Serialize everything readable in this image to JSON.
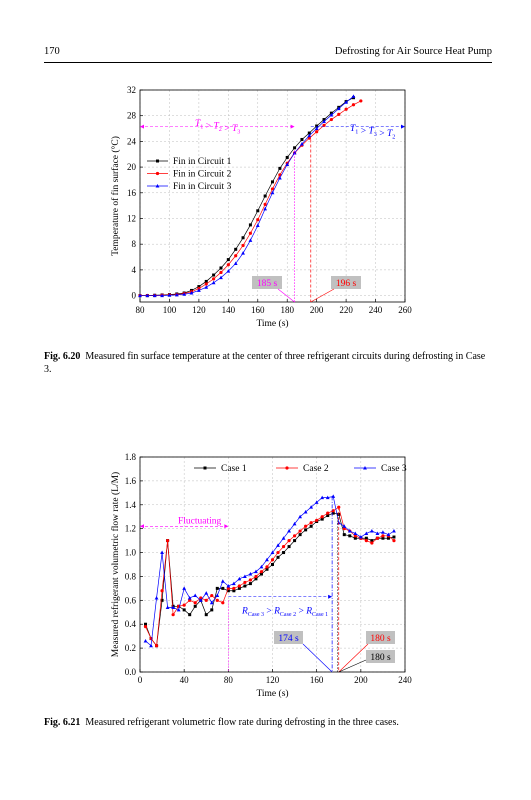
{
  "header": {
    "page_number": "170",
    "running_title": "Defrosting for Air Source Heat Pump"
  },
  "figures": [
    {
      "caption_label": "Fig. 6.20",
      "caption_text": "Measured fin surface temperature at the center of three refrigerant circuits during defrosting in Case 3.",
      "annotations": {
        "left_relation": "T1 > T2 > T3",
        "right_relation": "T1 > T3 > T2",
        "box_185": "185 s",
        "box_196": "196 s"
      }
    },
    {
      "caption_label": "Fig. 6.21",
      "caption_text": "Measured refrigerant volumetric flow rate during defrosting in the three cases.",
      "annotations": {
        "fluctuating": "Fluctuating",
        "relation": "RCase 3 > RCase 2 > RCase 1",
        "box_174": "174 s",
        "box_180_red": "180 s",
        "box_180": "180 s"
      }
    }
  ],
  "chart_data": [
    {
      "type": "line",
      "title": "",
      "xlabel": "Time (s)",
      "ylabel": "Temperature of fin surface (°C)",
      "xlim": [
        80,
        260
      ],
      "ylim": [
        -1,
        32
      ],
      "xticks": [
        80,
        100,
        120,
        140,
        160,
        180,
        200,
        220,
        240,
        260
      ],
      "yticks": [
        0,
        4,
        8,
        12,
        16,
        20,
        24,
        28,
        32
      ],
      "grid": true,
      "legend": "left",
      "series": [
        {
          "name": "Fin in Circuit 1",
          "color": "#000000",
          "marker": "square",
          "x": [
            80,
            85,
            90,
            95,
            100,
            105,
            110,
            115,
            120,
            125,
            130,
            135,
            140,
            145,
            150,
            155,
            160,
            165,
            170,
            175,
            180,
            185,
            190,
            195,
            200,
            205,
            210,
            215,
            220,
            225
          ],
          "y": [
            0,
            0,
            0.05,
            0.1,
            0.15,
            0.25,
            0.4,
            0.8,
            1.4,
            2.2,
            3.2,
            4.3,
            5.6,
            7.2,
            9,
            11,
            13.2,
            15.5,
            17.7,
            19.8,
            21.5,
            23,
            24.3,
            25.3,
            26.4,
            27.4,
            28.4,
            29.3,
            30.2,
            30.8
          ]
        },
        {
          "name": "Fin in Circuit 2",
          "color": "#ff0000",
          "marker": "circle",
          "x": [
            80,
            85,
            90,
            95,
            100,
            105,
            110,
            115,
            120,
            125,
            130,
            135,
            140,
            145,
            150,
            155,
            160,
            165,
            170,
            175,
            180,
            185,
            190,
            195,
            200,
            205,
            210,
            215,
            220,
            225,
            230
          ],
          "y": [
            0,
            0,
            0,
            0.05,
            0.1,
            0.15,
            0.3,
            0.6,
            1.1,
            1.8,
            2.6,
            3.6,
            4.8,
            6.2,
            7.8,
            9.7,
            11.8,
            14.2,
            16.6,
            18.8,
            20.6,
            22.2,
            23.4,
            24.5,
            25.5,
            26.5,
            27.4,
            28.2,
            29,
            29.7,
            30.3
          ]
        },
        {
          "name": "Fin in Circuit 3",
          "color": "#0000ff",
          "marker": "triangle",
          "x": [
            80,
            85,
            90,
            95,
            100,
            105,
            110,
            115,
            120,
            125,
            130,
            135,
            140,
            145,
            150,
            155,
            160,
            165,
            170,
            175,
            180,
            185,
            190,
            195,
            200,
            205,
            210,
            215,
            220,
            225
          ],
          "y": [
            0,
            0,
            0,
            0,
            0.05,
            0.1,
            0.2,
            0.4,
            0.8,
            1.3,
            2,
            2.8,
            3.8,
            5,
            6.6,
            8.6,
            10.9,
            13.5,
            16,
            18.3,
            20.4,
            22.2,
            23.6,
            24.9,
            26,
            27.1,
            28.1,
            29.1,
            30.1,
            31
          ]
        }
      ],
      "markers_vertical": [
        185,
        196
      ]
    },
    {
      "type": "line",
      "title": "",
      "xlabel": "Time (s)",
      "ylabel": "Measured refrigerant volumetric flow rate (L/M)",
      "xlim": [
        0,
        240
      ],
      "ylim": [
        0,
        1.8
      ],
      "xticks": [
        0,
        40,
        80,
        120,
        160,
        200,
        240
      ],
      "yticks": [
        0.0,
        0.2,
        0.4,
        0.6,
        0.8,
        1.0,
        1.2,
        1.4,
        1.6,
        1.8
      ],
      "grid": true,
      "legend": "top",
      "series": [
        {
          "name": "Case 1",
          "color": "#000000",
          "marker": "square",
          "x": [
            5,
            10,
            15,
            20,
            25,
            30,
            35,
            40,
            45,
            50,
            55,
            60,
            65,
            70,
            75,
            80,
            85,
            90,
            95,
            100,
            105,
            110,
            115,
            120,
            125,
            130,
            135,
            140,
            145,
            150,
            155,
            160,
            165,
            170,
            175,
            180,
            185,
            190,
            195,
            200,
            205,
            210,
            215,
            220,
            225,
            230
          ],
          "y": [
            0.4,
            0.28,
            0.22,
            0.6,
            1.1,
            0.55,
            0.55,
            0.52,
            0.48,
            0.55,
            0.6,
            0.48,
            0.52,
            0.7,
            0.7,
            0.68,
            0.68,
            0.7,
            0.72,
            0.74,
            0.78,
            0.82,
            0.86,
            0.9,
            0.96,
            1.0,
            1.05,
            1.1,
            1.15,
            1.19,
            1.22,
            1.26,
            1.28,
            1.31,
            1.33,
            1.32,
            1.15,
            1.14,
            1.12,
            1.12,
            1.12,
            1.1,
            1.12,
            1.12,
            1.12,
            1.13
          ]
        },
        {
          "name": "Case 2",
          "color": "#ff0000",
          "marker": "circle",
          "x": [
            5,
            10,
            15,
            20,
            25,
            30,
            35,
            40,
            45,
            50,
            55,
            60,
            65,
            70,
            75,
            80,
            85,
            90,
            95,
            100,
            105,
            110,
            115,
            120,
            125,
            130,
            135,
            140,
            145,
            150,
            155,
            160,
            165,
            170,
            175,
            180,
            185,
            190,
            195,
            200,
            205,
            210,
            215,
            220,
            225,
            230
          ],
          "y": [
            0.38,
            0.28,
            0.22,
            0.68,
            1.1,
            0.48,
            0.55,
            0.56,
            0.6,
            0.58,
            0.62,
            0.6,
            0.64,
            0.6,
            0.58,
            0.7,
            0.7,
            0.72,
            0.75,
            0.77,
            0.8,
            0.84,
            0.88,
            0.94,
            1.0,
            1.05,
            1.1,
            1.14,
            1.18,
            1.22,
            1.25,
            1.27,
            1.3,
            1.33,
            1.35,
            1.38,
            1.2,
            1.18,
            1.14,
            1.12,
            1.1,
            1.08,
            1.12,
            1.14,
            1.14,
            1.1
          ]
        },
        {
          "name": "Case 3",
          "color": "#0000ff",
          "marker": "triangle",
          "x": [
            5,
            10,
            15,
            20,
            25,
            30,
            35,
            40,
            45,
            50,
            55,
            60,
            65,
            70,
            75,
            80,
            85,
            90,
            95,
            100,
            105,
            110,
            115,
            120,
            125,
            130,
            135,
            140,
            145,
            150,
            155,
            160,
            165,
            170,
            175,
            180,
            185,
            190,
            195,
            200,
            205,
            210,
            215,
            220,
            225,
            230
          ],
          "y": [
            0.26,
            0.22,
            0.62,
            1.0,
            0.54,
            0.54,
            0.52,
            0.7,
            0.62,
            0.64,
            0.6,
            0.66,
            0.58,
            0.64,
            0.76,
            0.72,
            0.74,
            0.78,
            0.8,
            0.82,
            0.84,
            0.88,
            0.94,
            1.0,
            1.06,
            1.12,
            1.18,
            1.24,
            1.3,
            1.34,
            1.38,
            1.42,
            1.46,
            1.46,
            1.47,
            1.25,
            1.22,
            1.18,
            1.16,
            1.13,
            1.16,
            1.18,
            1.16,
            1.17,
            1.15,
            1.18
          ]
        }
      ],
      "markers_vertical": [
        174,
        180
      ]
    }
  ]
}
